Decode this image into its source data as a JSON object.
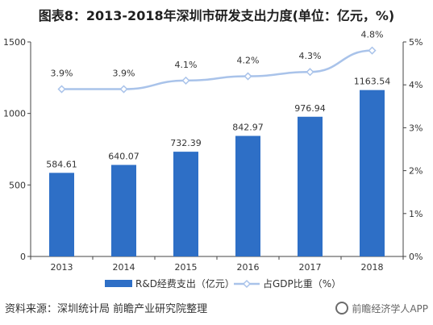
{
  "title": "图表8：2013-2018年深圳市研发支出力度(单位：亿元，%)",
  "footer": "资料来源：深圳统计局 前瞻产业研究院整理",
  "watermark": "前瞻经济学人APP",
  "colors": {
    "bar": "#2e6fc6",
    "line": "#a9c3ea",
    "axis": "#444444"
  },
  "chart_data": {
    "type": "bar+line",
    "categories": [
      "2013",
      "2014",
      "2015",
      "2016",
      "2017",
      "2018"
    ],
    "series": [
      {
        "name": "R&D经费支出（亿元）",
        "type": "bar",
        "axis": "left",
        "values": [
          584.61,
          640.07,
          732.39,
          842.97,
          976.94,
          1163.54
        ],
        "labels": [
          "584.61",
          "640.07",
          "732.39",
          "842.97",
          "976.94",
          "1163.54"
        ]
      },
      {
        "name": "占GDP比重（%）",
        "type": "line",
        "axis": "right",
        "values": [
          3.9,
          3.9,
          4.1,
          4.2,
          4.3,
          4.8
        ],
        "labels": [
          "3.9%",
          "3.9%",
          "4.1%",
          "4.2%",
          "4.3%",
          "4.8%"
        ]
      }
    ],
    "y_left": {
      "ylim": [
        0,
        1500
      ],
      "ticks": [
        "0",
        "500",
        "1000",
        "1500"
      ]
    },
    "y_right": {
      "ylim": [
        0,
        5
      ],
      "ticks": [
        "0%",
        "1%",
        "2%",
        "3%",
        "4%",
        "5%"
      ]
    },
    "legend_position": "bottom"
  }
}
